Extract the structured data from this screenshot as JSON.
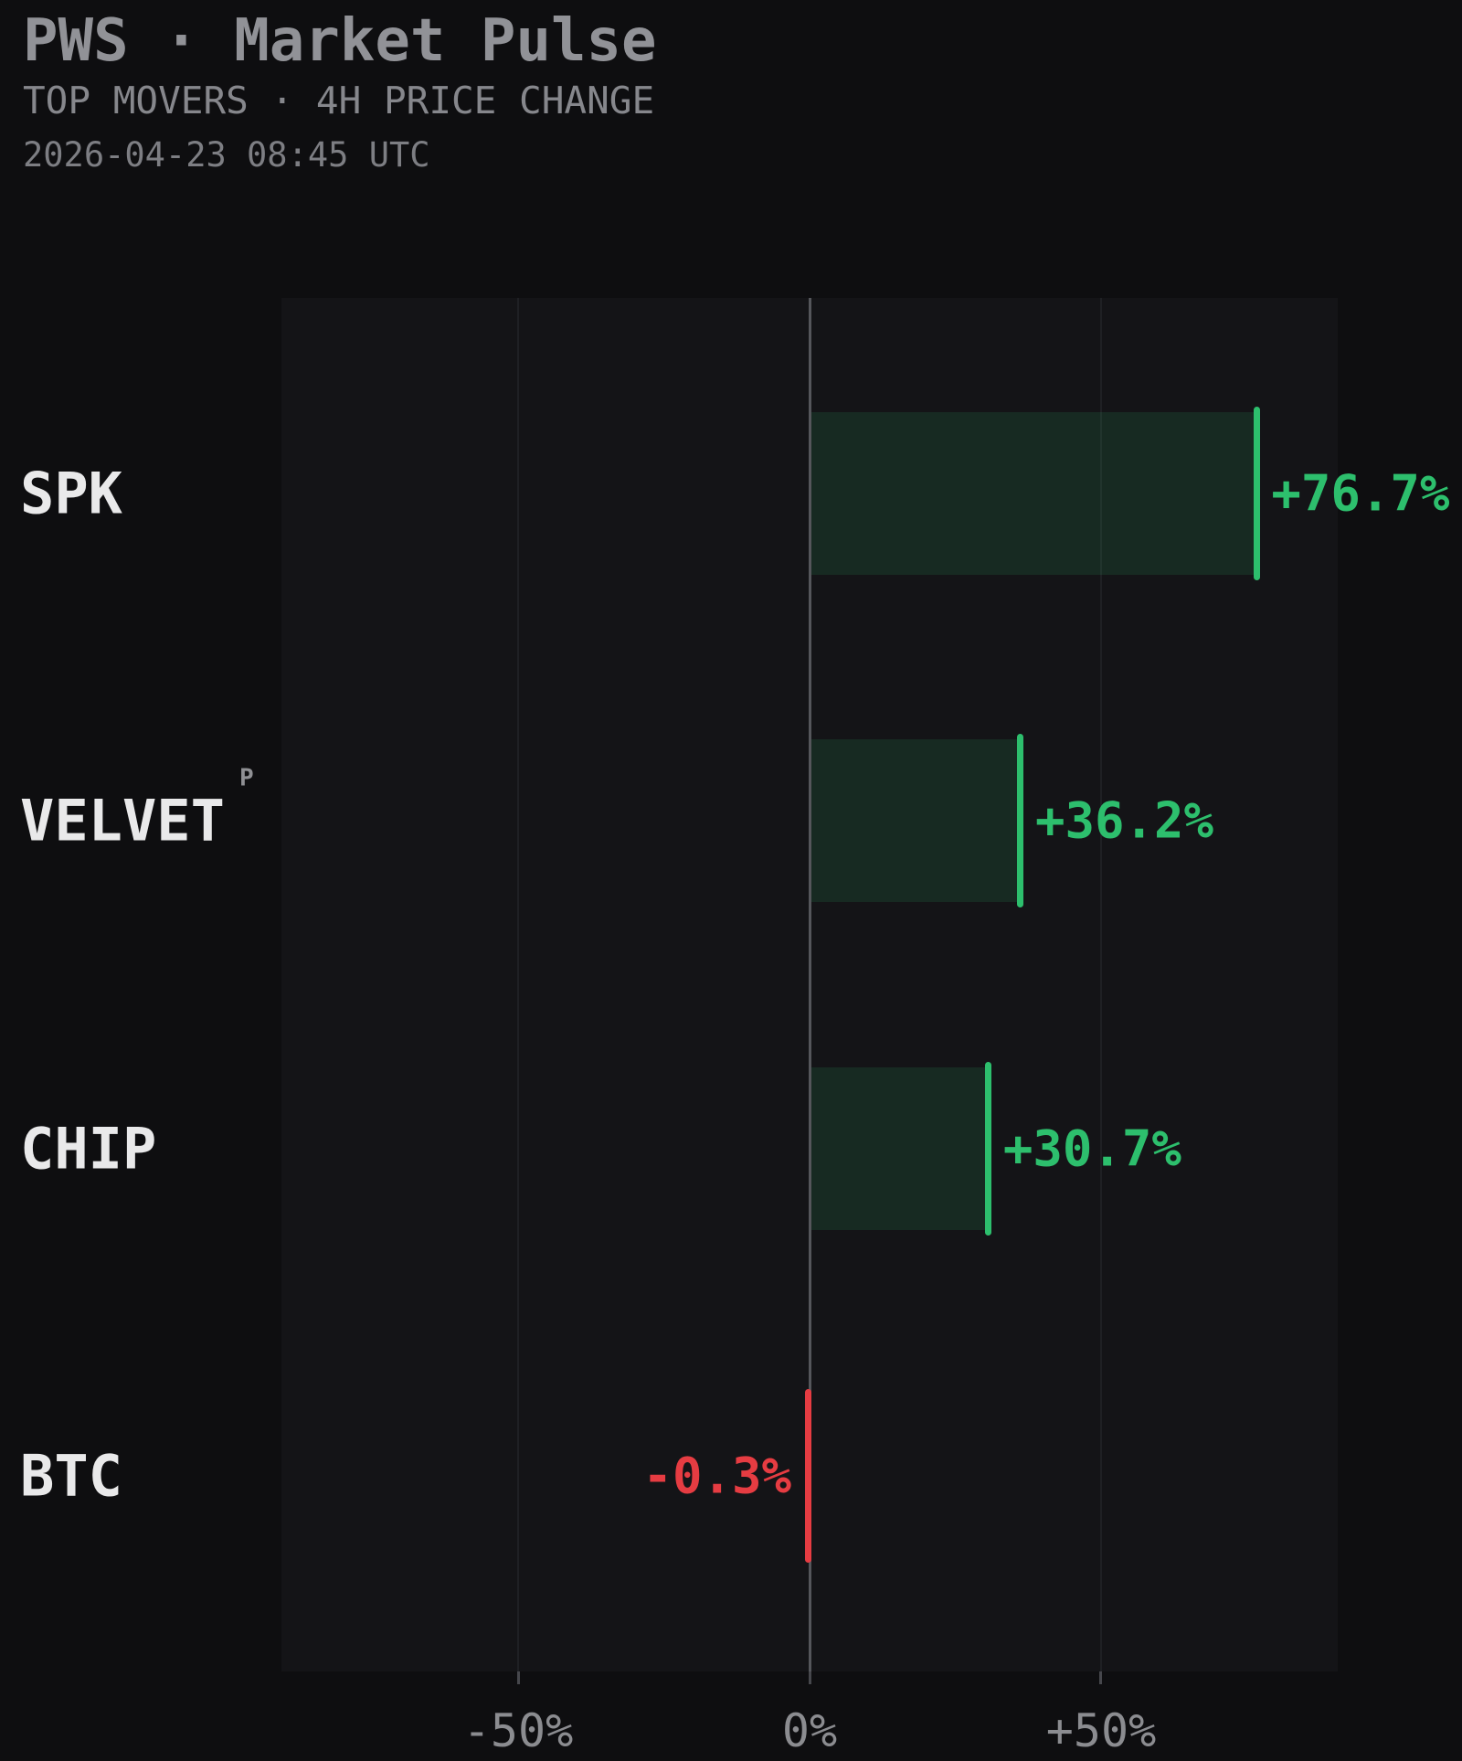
{
  "header": {
    "title": "PWS · Market Pulse",
    "subtitle": "TOP MOVERS · 4H PRICE CHANGE",
    "timestamp": "2026-04-23 08:45 UTC"
  },
  "chart_data": {
    "type": "bar",
    "orientation": "horizontal",
    "title": "PWS · Market Pulse",
    "subtitle": "TOP MOVERS · 4H PRICE CHANGE",
    "timestamp": "2026-04-23 08:45 UTC",
    "xlim": [
      -90.6,
      90.6
    ],
    "grid": true,
    "x_ticks": [
      {
        "value": -50,
        "label": "-50%"
      },
      {
        "value": 0,
        "label": "0%"
      },
      {
        "value": 50,
        "label": "+50%"
      }
    ],
    "rows": [
      {
        "label": "SPK",
        "value": 76.7,
        "change_label": "+76.7%",
        "direction": "up"
      },
      {
        "label": "VELVET",
        "superscript": "P",
        "value": 36.2,
        "change_label": "+36.2%",
        "direction": "up"
      },
      {
        "label": "CHIP",
        "value": 30.7,
        "change_label": "+30.7%",
        "direction": "up"
      },
      {
        "label": "BTC",
        "value": -0.3,
        "change_label": "-0.3%",
        "direction": "down"
      }
    ],
    "colors": {
      "up": "#2dbf6d",
      "down": "#e63c42",
      "up_fill": "rgba(45,191,109,0.13)",
      "down_fill": "rgba(230,60,66,0.13)",
      "zero_line": "#55565b",
      "gridline": "#1f2024",
      "plot_background": "#141417",
      "page_background": "#0e0e10"
    }
  }
}
